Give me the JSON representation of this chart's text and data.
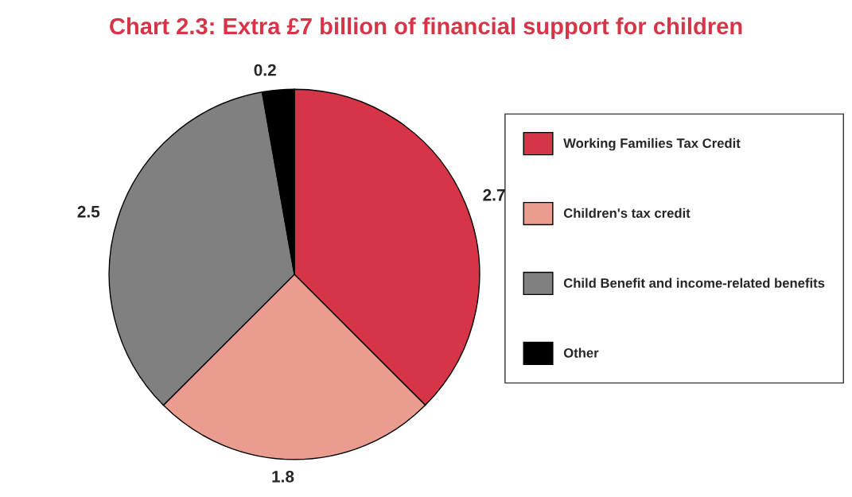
{
  "chart_data": {
    "type": "pie",
    "title": "Chart 2.3: Extra £7 billion of financial support for children",
    "categories": [
      "Working Families Tax Credit",
      "Children's tax credit",
      "Child Benefit and income-related benefits",
      "Other"
    ],
    "values": [
      2.7,
      1.8,
      2.5,
      0.2
    ],
    "colors": [
      "#d63447",
      "#ea9c8f",
      "#808080",
      "#000000"
    ],
    "data_labels": true,
    "legend": "right"
  }
}
